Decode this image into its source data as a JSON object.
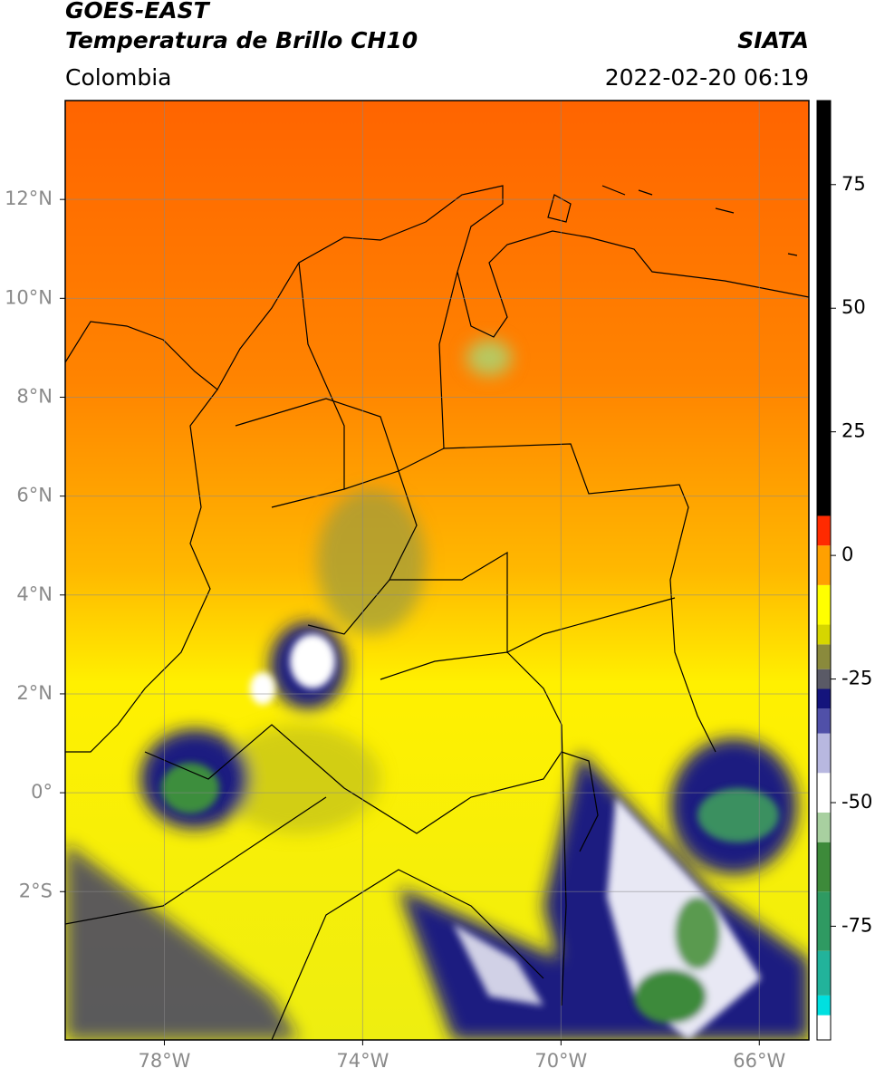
{
  "header": {
    "title": "GOES-EAST",
    "subtitle": "Temperatura de Brillo CH10",
    "source": "SIATA",
    "region": "Colombia",
    "timestamp": "2022-02-20 06:19"
  },
  "chart_data": {
    "type": "map",
    "xlim": [
      -80,
      -65
    ],
    "ylim": [
      -5,
      14
    ],
    "xticks": [
      {
        "value": -78,
        "label": "78°W"
      },
      {
        "value": -74,
        "label": "74°W"
      },
      {
        "value": -70,
        "label": "70°W"
      },
      {
        "value": -66,
        "label": "66°W"
      }
    ],
    "yticks": [
      {
        "value": -2,
        "label": "2°S"
      },
      {
        "value": 0,
        "label": "0°"
      },
      {
        "value": 2,
        "label": "2°N"
      },
      {
        "value": 4,
        "label": "4°N"
      },
      {
        "value": 6,
        "label": "6°N"
      },
      {
        "value": 8,
        "label": "8°N"
      },
      {
        "value": 10,
        "label": "10°N"
      },
      {
        "value": 12,
        "label": "12°N"
      }
    ],
    "grid": true,
    "colorbar": {
      "lim": [
        -98,
        92
      ],
      "ticks": [
        -75,
        -50,
        -25,
        0,
        25,
        50,
        75
      ],
      "segments": [
        {
          "from": -98,
          "to": -93,
          "color": "#ffffff"
        },
        {
          "from": -93,
          "to": -89,
          "color": "#00e0e0"
        },
        {
          "from": -89,
          "to": -80,
          "color": "#22b39b"
        },
        {
          "from": -80,
          "to": -68,
          "color": "#2f9a62"
        },
        {
          "from": -68,
          "to": -58,
          "color": "#3d8a3a"
        },
        {
          "from": -58,
          "to": -52,
          "color": "#a8d0a0"
        },
        {
          "from": -52,
          "to": -44,
          "color": "#ffffff"
        },
        {
          "from": -44,
          "to": -36,
          "color": "#b8b8e0"
        },
        {
          "from": -36,
          "to": -31,
          "color": "#5050a8"
        },
        {
          "from": -31,
          "to": -27,
          "color": "#14147c"
        },
        {
          "from": -27,
          "to": -23,
          "color": "#5a5a66"
        },
        {
          "from": -23,
          "to": -18,
          "color": "#8a8a3c"
        },
        {
          "from": -18,
          "to": -14,
          "color": "#d6d600"
        },
        {
          "from": -14,
          "to": -6,
          "color": "#ffff00"
        },
        {
          "from": -6,
          "to": 2,
          "color": "#ffa000"
        },
        {
          "from": 2,
          "to": 8,
          "color": "#ff2a00"
        },
        {
          "from": 8,
          "to": 92,
          "color": "#000000"
        }
      ]
    }
  }
}
